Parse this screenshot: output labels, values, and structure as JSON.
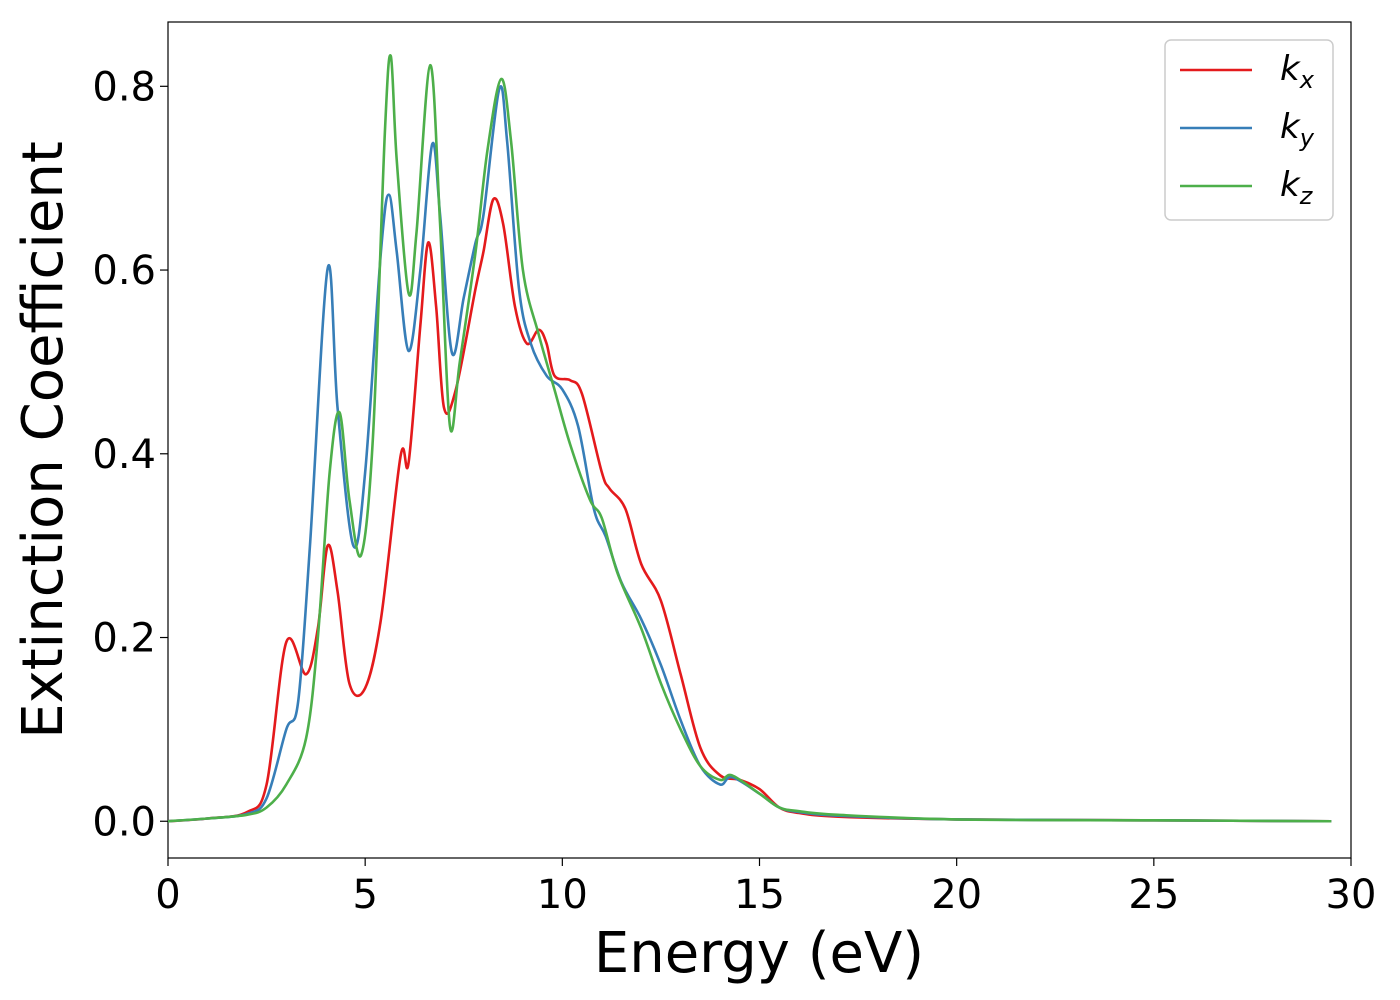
{
  "chart_data": {
    "type": "line",
    "xlabel": "Energy (eV)",
    "ylabel": "Extinction Coefficient",
    "xlim": [
      0,
      30
    ],
    "ylim": [
      -0.04,
      0.87
    ],
    "x_ticks": [
      "0",
      "5",
      "10",
      "15",
      "20",
      "25",
      "30"
    ],
    "y_ticks": [
      "0.0",
      "0.2",
      "0.4",
      "0.6",
      "0.8"
    ],
    "grid": false,
    "legend_position": "top-right",
    "series": [
      {
        "name": "k",
        "subscript": "x",
        "color": "#e41a1c",
        "points": [
          [
            0,
            0
          ],
          [
            1,
            0.003
          ],
          [
            2,
            0.01
          ],
          [
            2.5,
            0.04
          ],
          [
            3.0,
            0.195
          ],
          [
            3.5,
            0.16
          ],
          [
            3.8,
            0.21
          ],
          [
            4.05,
            0.3
          ],
          [
            4.3,
            0.25
          ],
          [
            4.6,
            0.15
          ],
          [
            5.0,
            0.145
          ],
          [
            5.4,
            0.22
          ],
          [
            5.9,
            0.398
          ],
          [
            6.1,
            0.39
          ],
          [
            6.4,
            0.54
          ],
          [
            6.6,
            0.63
          ],
          [
            6.8,
            0.56
          ],
          [
            7.0,
            0.45
          ],
          [
            7.3,
            0.47
          ],
          [
            7.8,
            0.58
          ],
          [
            8.0,
            0.62
          ],
          [
            8.25,
            0.677
          ],
          [
            8.5,
            0.65
          ],
          [
            8.8,
            0.56
          ],
          [
            9.1,
            0.52
          ],
          [
            9.4,
            0.535
          ],
          [
            9.6,
            0.52
          ],
          [
            9.8,
            0.485
          ],
          [
            10.2,
            0.48
          ],
          [
            10.5,
            0.465
          ],
          [
            11.0,
            0.38
          ],
          [
            11.2,
            0.362
          ],
          [
            11.6,
            0.34
          ],
          [
            12.0,
            0.28
          ],
          [
            12.5,
            0.24
          ],
          [
            13.0,
            0.16
          ],
          [
            13.5,
            0.08
          ],
          [
            14.0,
            0.05
          ],
          [
            14.5,
            0.045
          ],
          [
            15.0,
            0.035
          ],
          [
            15.5,
            0.015
          ],
          [
            16.0,
            0.009
          ],
          [
            17.0,
            0.005
          ],
          [
            20.0,
            0.002
          ],
          [
            25.0,
            0.001
          ],
          [
            29.5,
            0
          ]
        ]
      },
      {
        "name": "k",
        "subscript": "y",
        "color": "#377eb8",
        "points": [
          [
            0,
            0
          ],
          [
            1,
            0.003
          ],
          [
            2,
            0.008
          ],
          [
            2.5,
            0.025
          ],
          [
            3.0,
            0.1
          ],
          [
            3.3,
            0.13
          ],
          [
            3.6,
            0.3
          ],
          [
            4.05,
            0.602
          ],
          [
            4.3,
            0.45
          ],
          [
            4.7,
            0.3
          ],
          [
            5.0,
            0.38
          ],
          [
            5.4,
            0.62
          ],
          [
            5.6,
            0.682
          ],
          [
            5.8,
            0.62
          ],
          [
            6.1,
            0.512
          ],
          [
            6.4,
            0.6
          ],
          [
            6.7,
            0.737
          ],
          [
            6.9,
            0.66
          ],
          [
            7.2,
            0.51
          ],
          [
            7.5,
            0.57
          ],
          [
            7.8,
            0.63
          ],
          [
            8.0,
            0.66
          ],
          [
            8.4,
            0.797
          ],
          [
            8.6,
            0.74
          ],
          [
            8.9,
            0.58
          ],
          [
            9.2,
            0.52
          ],
          [
            9.6,
            0.485
          ],
          [
            10.0,
            0.47
          ],
          [
            10.4,
            0.43
          ],
          [
            10.8,
            0.34
          ],
          [
            11.1,
            0.31
          ],
          [
            11.5,
            0.26
          ],
          [
            12.0,
            0.22
          ],
          [
            12.5,
            0.17
          ],
          [
            13.0,
            0.11
          ],
          [
            13.5,
            0.06
          ],
          [
            14.0,
            0.04
          ],
          [
            14.3,
            0.048
          ],
          [
            15.0,
            0.03
          ],
          [
            15.5,
            0.015
          ],
          [
            16.0,
            0.01
          ],
          [
            17.0,
            0.006
          ],
          [
            20.0,
            0.002
          ],
          [
            25.0,
            0.001
          ],
          [
            29.5,
            0
          ]
        ]
      },
      {
        "name": "k",
        "subscript": "z",
        "color": "#4daf4a",
        "points": [
          [
            0,
            0
          ],
          [
            1,
            0.003
          ],
          [
            2,
            0.007
          ],
          [
            2.5,
            0.015
          ],
          [
            3.0,
            0.04
          ],
          [
            3.5,
            0.09
          ],
          [
            3.8,
            0.2
          ],
          [
            4.1,
            0.38
          ],
          [
            4.35,
            0.445
          ],
          [
            4.6,
            0.35
          ],
          [
            4.9,
            0.29
          ],
          [
            5.2,
            0.42
          ],
          [
            5.5,
            0.75
          ],
          [
            5.65,
            0.833
          ],
          [
            5.8,
            0.72
          ],
          [
            6.1,
            0.575
          ],
          [
            6.3,
            0.64
          ],
          [
            6.65,
            0.823
          ],
          [
            6.9,
            0.65
          ],
          [
            7.15,
            0.43
          ],
          [
            7.4,
            0.5
          ],
          [
            7.8,
            0.62
          ],
          [
            8.1,
            0.73
          ],
          [
            8.45,
            0.808
          ],
          [
            8.7,
            0.74
          ],
          [
            9.0,
            0.6
          ],
          [
            9.4,
            0.53
          ],
          [
            9.8,
            0.47
          ],
          [
            10.2,
            0.41
          ],
          [
            10.7,
            0.35
          ],
          [
            11.0,
            0.33
          ],
          [
            11.4,
            0.27
          ],
          [
            12.0,
            0.21
          ],
          [
            12.5,
            0.15
          ],
          [
            13.0,
            0.1
          ],
          [
            13.5,
            0.06
          ],
          [
            14.0,
            0.045
          ],
          [
            14.3,
            0.05
          ],
          [
            15.0,
            0.03
          ],
          [
            15.5,
            0.015
          ],
          [
            16.0,
            0.011
          ],
          [
            17.0,
            0.007
          ],
          [
            20.0,
            0.002
          ],
          [
            25.0,
            0.001
          ],
          [
            29.5,
            0
          ]
        ]
      }
    ]
  }
}
